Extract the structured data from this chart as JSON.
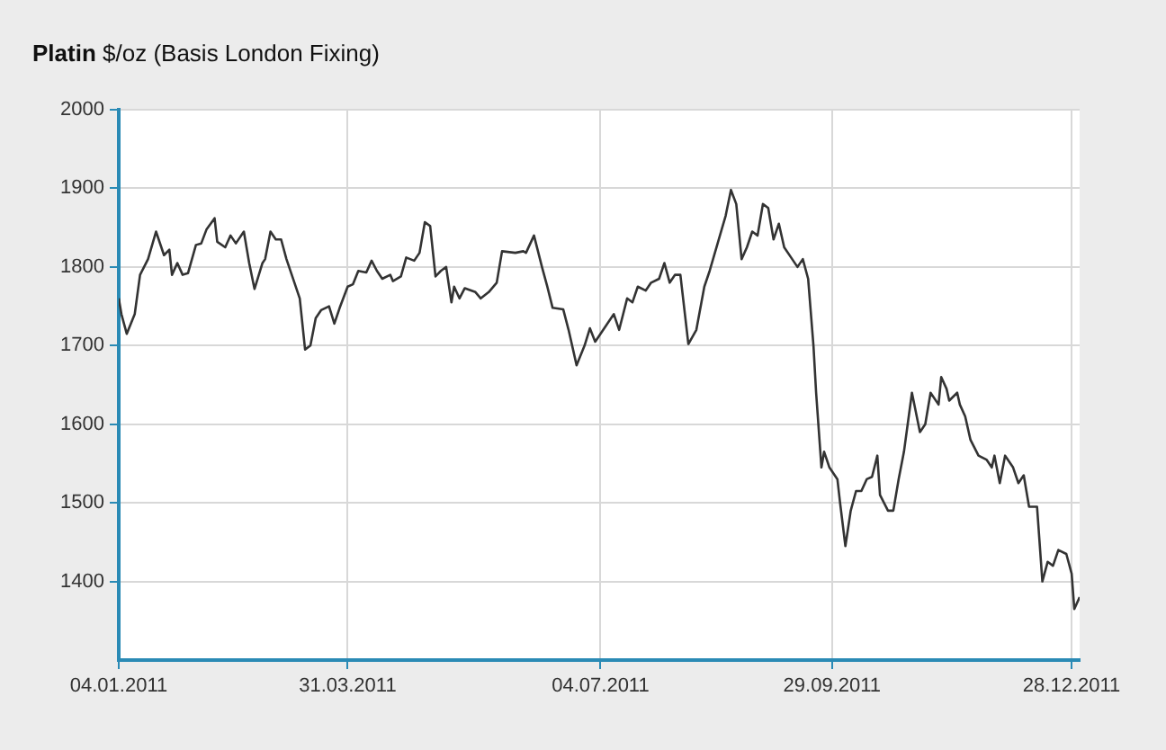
{
  "chart_data": {
    "type": "line",
    "title": "Platin $/oz (Basis London Fixing)",
    "x": [
      "2011-01-04",
      "2011-01-05",
      "2011-01-07",
      "2011-01-10",
      "2011-01-12",
      "2011-01-15",
      "2011-01-18",
      "2011-01-21",
      "2011-01-23",
      "2011-01-24",
      "2011-01-26",
      "2011-01-28",
      "2011-01-30",
      "2011-02-02",
      "2011-02-04",
      "2011-02-06",
      "2011-02-09",
      "2011-02-10",
      "2011-02-13",
      "2011-02-15",
      "2011-02-17",
      "2011-02-20",
      "2011-02-22",
      "2011-02-24",
      "2011-02-27",
      "2011-02-28",
      "2011-03-02",
      "2011-03-04",
      "2011-03-06",
      "2011-03-08",
      "2011-03-11",
      "2011-03-13",
      "2011-03-15",
      "2011-03-17",
      "2011-03-19",
      "2011-03-21",
      "2011-03-24",
      "2011-03-26",
      "2011-03-28",
      "2011-03-31",
      "2011-04-02",
      "2011-04-04",
      "2011-04-07",
      "2011-04-09",
      "2011-04-11",
      "2011-04-13",
      "2011-04-16",
      "2011-04-17",
      "2011-04-20",
      "2011-04-22",
      "2011-04-25",
      "2011-04-27",
      "2011-04-29",
      "2011-05-01",
      "2011-05-03",
      "2011-05-05",
      "2011-05-07",
      "2011-05-09",
      "2011-05-10",
      "2011-05-12",
      "2011-05-14",
      "2011-05-18",
      "2011-05-20",
      "2011-05-23",
      "2011-05-26",
      "2011-05-28",
      "2011-06-02",
      "2011-06-05",
      "2011-06-06",
      "2011-06-09",
      "2011-06-12",
      "2011-06-14",
      "2011-06-16",
      "2011-06-20",
      "2011-06-22",
      "2011-06-25",
      "2011-06-28",
      "2011-06-30",
      "2011-07-02",
      "2011-07-07",
      "2011-07-09",
      "2011-07-11",
      "2011-07-14",
      "2011-07-16",
      "2011-07-18",
      "2011-07-21",
      "2011-07-23",
      "2011-07-26",
      "2011-07-28",
      "2011-07-30",
      "2011-08-01",
      "2011-08-03",
      "2011-08-06",
      "2011-08-09",
      "2011-08-12",
      "2011-08-14",
      "2011-08-17",
      "2011-08-20",
      "2011-08-22",
      "2011-08-24",
      "2011-08-26",
      "2011-08-28",
      "2011-08-30",
      "2011-09-01",
      "2011-09-03",
      "2011-09-05",
      "2011-09-07",
      "2011-09-09",
      "2011-09-11",
      "2011-09-14",
      "2011-09-16",
      "2011-09-18",
      "2011-09-20",
      "2011-09-22",
      "2011-09-23",
      "2011-09-25",
      "2011-09-26",
      "2011-09-28",
      "2011-10-01",
      "2011-10-02",
      "2011-10-04",
      "2011-10-06",
      "2011-10-08",
      "2011-10-10",
      "2011-10-12",
      "2011-10-14",
      "2011-10-16",
      "2011-10-17",
      "2011-10-20",
      "2011-10-22",
      "2011-10-24",
      "2011-10-26",
      "2011-10-29",
      "2011-11-01",
      "2011-11-03",
      "2011-11-05",
      "2011-11-08",
      "2011-11-09",
      "2011-11-11",
      "2011-11-12",
      "2011-11-15",
      "2011-11-16",
      "2011-11-18",
      "2011-11-20",
      "2011-11-23",
      "2011-11-26",
      "2011-11-28",
      "2011-11-29",
      "2011-12-01",
      "2011-12-03",
      "2011-12-06",
      "2011-12-08",
      "2011-12-10",
      "2011-12-12",
      "2011-12-15",
      "2011-12-17",
      "2011-12-19",
      "2011-12-21",
      "2011-12-23",
      "2011-12-26",
      "2011-12-28",
      "2011-12-29",
      "2011-12-31"
    ],
    "series": [
      {
        "color": "#333333",
        "values": [
          1760,
          1740,
          1715,
          1740,
          1790,
          1810,
          1845,
          1815,
          1822,
          1790,
          1805,
          1790,
          1792,
          1828,
          1830,
          1848,
          1862,
          1832,
          1825,
          1840,
          1830,
          1845,
          1805,
          1772,
          1805,
          1810,
          1845,
          1835,
          1835,
          1810,
          1780,
          1760,
          1695,
          1700,
          1735,
          1745,
          1750,
          1728,
          1748,
          1775,
          1778,
          1795,
          1793,
          1808,
          1795,
          1785,
          1790,
          1782,
          1788,
          1812,
          1808,
          1818,
          1857,
          1852,
          1788,
          1795,
          1800,
          1755,
          1775,
          1760,
          1773,
          1768,
          1760,
          1768,
          1780,
          1820,
          1818,
          1820,
          1818,
          1840,
          1800,
          1775,
          1748,
          1746,
          1720,
          1675,
          1700,
          1722,
          1705,
          1730,
          1740,
          1720,
          1760,
          1755,
          1775,
          1770,
          1780,
          1785,
          1805,
          1780,
          1790,
          1790,
          1702,
          1720,
          1775,
          1795,
          1830,
          1865,
          1898,
          1880,
          1810,
          1825,
          1845,
          1840,
          1880,
          1875,
          1835,
          1855,
          1825,
          1810,
          1800,
          1810,
          1785,
          1700,
          1640,
          1545,
          1565,
          1545,
          1530,
          1500,
          1445,
          1490,
          1515,
          1515,
          1530,
          1533,
          1560,
          1510,
          1490,
          1490,
          1530,
          1565,
          1640,
          1590,
          1600,
          1640,
          1625,
          1660,
          1645,
          1630,
          1640,
          1625,
          1610,
          1580,
          1560,
          1555,
          1545,
          1560,
          1525,
          1560,
          1545,
          1525,
          1535,
          1495,
          1495,
          1400,
          1425,
          1420,
          1440,
          1435,
          1410,
          1365,
          1380
        ]
      }
    ],
    "xlim": [
      "2011-01-04",
      "2011-12-31"
    ],
    "xticks": [
      {
        "value": "2011-01-04",
        "label": "04.01.2011"
      },
      {
        "value": "2011-03-31",
        "label": "31.03.2011"
      },
      {
        "value": "2011-07-04",
        "label": "04.07.2011"
      },
      {
        "value": "2011-09-29",
        "label": "29.09.2011"
      },
      {
        "value": "2011-12-28",
        "label": "28.12.2011"
      }
    ],
    "ylim": [
      1300,
      2000
    ],
    "yticks": [
      1400,
      1500,
      1600,
      1700,
      1800,
      1900,
      2000
    ],
    "grid": true,
    "legend": false,
    "marker": "none",
    "line_style": "solid"
  }
}
